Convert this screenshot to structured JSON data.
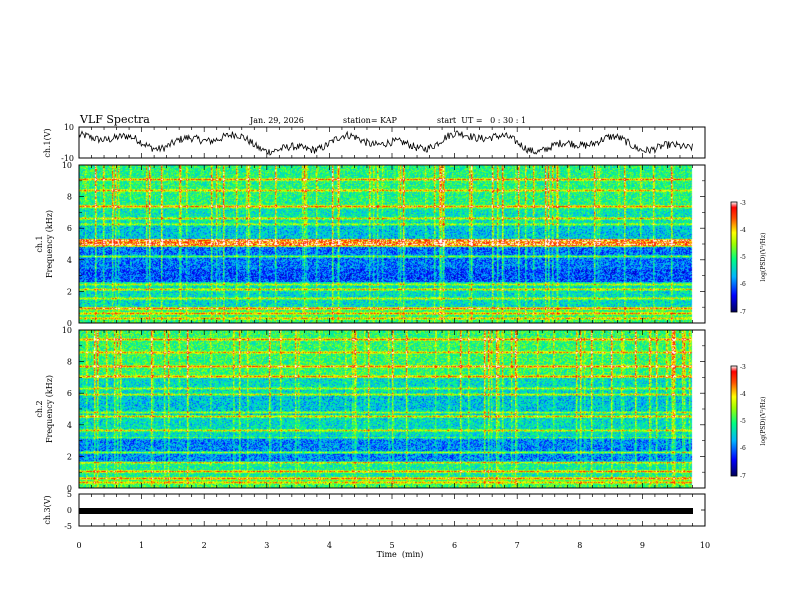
{
  "header": {
    "title": "VLF Spectra",
    "date": "Jan. 29, 2026",
    "station": "station= KAP",
    "start": "start  UT =   0 : 30 : 1"
  },
  "chart_data": [
    {
      "type": "line",
      "name": "ch1-waveform",
      "ylabel": "ch.1(V)",
      "ylim": [
        -10,
        10
      ],
      "yticks": [
        "10",
        "-10"
      ],
      "xlim": [
        0,
        10
      ],
      "summary": "noisy signal fluctuating roughly between -8 and 9 V over 0–9.8 min"
    },
    {
      "type": "heatmap",
      "name": "ch1-spectrogram",
      "ylabel": "ch.1\nFrequency (kHz)",
      "ylim": [
        0,
        10
      ],
      "yticks": [
        "0",
        "2",
        "4",
        "6",
        "8",
        "10"
      ],
      "xlim": [
        0,
        10
      ],
      "data_extent_min": 9.8,
      "colorbar": {
        "label": "log(PSD)(V²/Hz)",
        "range": [
          -7,
          -3
        ],
        "ticks": [
          "-3",
          "-4",
          "-5",
          "-6",
          "-7"
        ]
      }
    },
    {
      "type": "heatmap",
      "name": "ch2-spectrogram",
      "ylabel": "ch.2\nFrequency (kHz)",
      "ylim": [
        0,
        10
      ],
      "yticks": [
        "0",
        "2",
        "4",
        "6",
        "8",
        "10"
      ],
      "xlim": [
        0,
        10
      ],
      "data_extent_min": 9.8,
      "colorbar": {
        "label": "log(PSD)(V²/Hz)",
        "range": [
          -7,
          -3
        ],
        "ticks": [
          "-3",
          "-4",
          "-5",
          "-6",
          "-7"
        ]
      }
    },
    {
      "type": "line",
      "name": "ch3-waveform",
      "ylabel": "ch.3(V)",
      "ylim": [
        -5,
        5
      ],
      "yticks": [
        "5",
        "0",
        "-5"
      ],
      "xlim": [
        0,
        10
      ],
      "xlabel": "Time  (min)",
      "xticks": [
        "0",
        "1",
        "2",
        "3",
        "4",
        "5",
        "6",
        "7",
        "8",
        "9",
        "10"
      ],
      "summary": "flat thick band near -1 V"
    }
  ],
  "colors": {
    "colormap": [
      "#00008b",
      "#0000ff",
      "#00b4ff",
      "#00ff80",
      "#80ff00",
      "#ffff00",
      "#ff8000",
      "#ff0000",
      "#8b0000"
    ]
  }
}
